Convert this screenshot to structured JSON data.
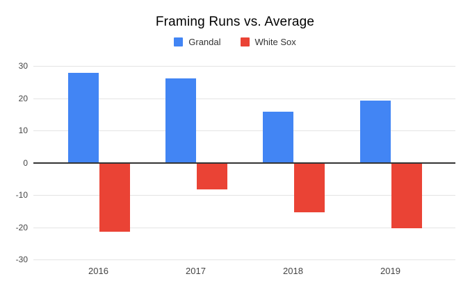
{
  "chart": {
    "title": "Framing Runs vs. Average"
  },
  "chart_data": {
    "type": "bar",
    "title": "Framing Runs vs. Average",
    "categories": [
      "2016",
      "2017",
      "2018",
      "2019"
    ],
    "series": [
      {
        "name": "Grandal",
        "color": "#4285F4",
        "values": [
          27.9,
          26.1,
          15.7,
          19.2
        ]
      },
      {
        "name": "White Sox",
        "color": "#EA4335",
        "values": [
          -21.2,
          -8.1,
          -15.2,
          -20.0
        ]
      }
    ],
    "xlabel": "",
    "ylabel": "",
    "ylim": [
      -30,
      30
    ],
    "yticks": [
      30,
      20,
      10,
      0,
      -10,
      -20,
      -30
    ],
    "grid": true,
    "legend_position": "top",
    "colors": {
      "gridline": "#e3e3e3",
      "zero_axis": "#333333",
      "axis_text": "#444444",
      "title_text": "#000000"
    }
  }
}
